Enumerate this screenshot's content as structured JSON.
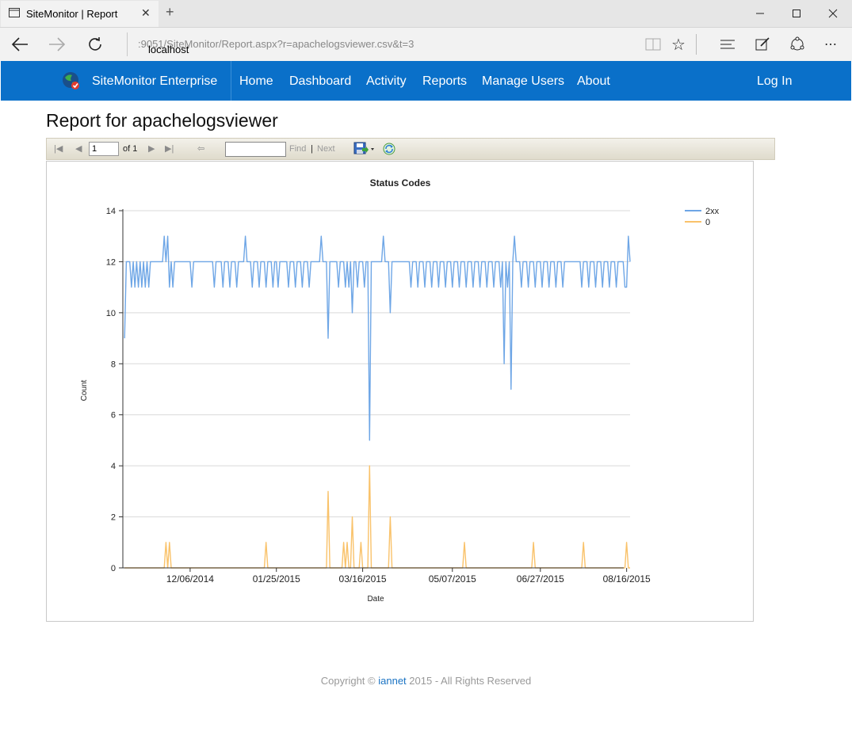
{
  "browser": {
    "tab_title": "SiteMonitor | Report",
    "url_host": "localhost",
    "url_rest": ":9051/SiteMonitor/Report.aspx?r=apachelogsviewer.csv&t=3"
  },
  "navbar": {
    "brand": "SiteMonitor Enterprise",
    "links": [
      "Home",
      "Dashboard",
      "Activity",
      "Reports",
      "Manage Users",
      "About"
    ],
    "login": "Log In"
  },
  "page": {
    "title": "Report for apachelogsviewer"
  },
  "report_toolbar": {
    "page_value": "1",
    "of_label": "of 1",
    "find_label": "Find",
    "separator": "|",
    "next_label": "Next"
  },
  "chart_data": {
    "type": "line",
    "title": "Status Codes",
    "xlabel": "Date",
    "ylabel": "Count",
    "ylim": [
      0,
      14
    ],
    "yticks": [
      0,
      2,
      4,
      6,
      8,
      10,
      12,
      14
    ],
    "xticks": [
      "12/06/2014",
      "01/25/2015",
      "03/16/2015",
      "05/07/2015",
      "06/27/2015",
      "08/16/2015"
    ],
    "xlim": [
      "2014-10-28",
      "2015-08-18"
    ],
    "grid": true,
    "legend_position": "right",
    "series": [
      {
        "name": "2xx",
        "color": "#6ea6e6",
        "points": [
          [
            "2014-10-29",
            9
          ],
          [
            "2014-10-30",
            12
          ],
          [
            "2014-11-01",
            12
          ],
          [
            "2014-11-02",
            11
          ],
          [
            "2014-11-03",
            12
          ],
          [
            "2014-11-04",
            11
          ],
          [
            "2014-11-05",
            12
          ],
          [
            "2014-11-06",
            11
          ],
          [
            "2014-11-07",
            12
          ],
          [
            "2014-11-08",
            11
          ],
          [
            "2014-11-09",
            12
          ],
          [
            "2014-11-10",
            11
          ],
          [
            "2014-11-11",
            12
          ],
          [
            "2014-11-12",
            11
          ],
          [
            "2014-11-13",
            12
          ],
          [
            "2014-11-20",
            12
          ],
          [
            "2014-11-21",
            13
          ],
          [
            "2014-11-22",
            12
          ],
          [
            "2014-11-23",
            13
          ],
          [
            "2014-11-24",
            11
          ],
          [
            "2014-11-25",
            12
          ],
          [
            "2014-11-26",
            11
          ],
          [
            "2014-11-27",
            12
          ],
          [
            "2014-12-06",
            12
          ],
          [
            "2014-12-07",
            11
          ],
          [
            "2014-12-08",
            12
          ],
          [
            "2014-12-19",
            12
          ],
          [
            "2014-12-20",
            11
          ],
          [
            "2014-12-21",
            12
          ],
          [
            "2014-12-24",
            12
          ],
          [
            "2014-12-25",
            11
          ],
          [
            "2014-12-26",
            12
          ],
          [
            "2014-12-28",
            12
          ],
          [
            "2014-12-29",
            11
          ],
          [
            "2014-12-30",
            12
          ],
          [
            "2015-01-01",
            12
          ],
          [
            "2015-01-02",
            11
          ],
          [
            "2015-01-03",
            12
          ],
          [
            "2015-01-06",
            12
          ],
          [
            "2015-01-07",
            13
          ],
          [
            "2015-01-08",
            12
          ],
          [
            "2015-01-10",
            12
          ],
          [
            "2015-01-11",
            11
          ],
          [
            "2015-01-12",
            12
          ],
          [
            "2015-01-14",
            12
          ],
          [
            "2015-01-15",
            11
          ],
          [
            "2015-01-16",
            12
          ],
          [
            "2015-01-18",
            12
          ],
          [
            "2015-01-19",
            11
          ],
          [
            "2015-01-20",
            12
          ],
          [
            "2015-01-22",
            12
          ],
          [
            "2015-01-23",
            11
          ],
          [
            "2015-01-24",
            12
          ],
          [
            "2015-01-25",
            12
          ],
          [
            "2015-01-26",
            11
          ],
          [
            "2015-01-27",
            12
          ],
          [
            "2015-01-31",
            12
          ],
          [
            "2015-02-01",
            11
          ],
          [
            "2015-02-02",
            12
          ],
          [
            "2015-02-04",
            12
          ],
          [
            "2015-02-05",
            11
          ],
          [
            "2015-02-06",
            12
          ],
          [
            "2015-02-08",
            12
          ],
          [
            "2015-02-09",
            11
          ],
          [
            "2015-02-10",
            12
          ],
          [
            "2015-02-12",
            12
          ],
          [
            "2015-02-13",
            11
          ],
          [
            "2015-02-14",
            12
          ],
          [
            "2015-02-19",
            12
          ],
          [
            "2015-02-20",
            13
          ],
          [
            "2015-02-21",
            12
          ],
          [
            "2015-02-23",
            12
          ],
          [
            "2015-02-24",
            9
          ],
          [
            "2015-02-25",
            12
          ],
          [
            "2015-03-01",
            12
          ],
          [
            "2015-03-02",
            11
          ],
          [
            "2015-03-03",
            12
          ],
          [
            "2015-03-05",
            12
          ],
          [
            "2015-03-06",
            11
          ],
          [
            "2015-03-07",
            12
          ],
          [
            "2015-03-08",
            11
          ],
          [
            "2015-03-09",
            12
          ],
          [
            "2015-03-10",
            10
          ],
          [
            "2015-03-11",
            12
          ],
          [
            "2015-03-12",
            12
          ],
          [
            "2015-03-13",
            11
          ],
          [
            "2015-03-14",
            12
          ],
          [
            "2015-03-16",
            12
          ],
          [
            "2015-03-17",
            11
          ],
          [
            "2015-03-18",
            12
          ],
          [
            "2015-03-19",
            12
          ],
          [
            "2015-03-20",
            5
          ],
          [
            "2015-03-21",
            12
          ],
          [
            "2015-03-27",
            12
          ],
          [
            "2015-03-28",
            13
          ],
          [
            "2015-03-29",
            12
          ],
          [
            "2015-03-31",
            12
          ],
          [
            "2015-04-01",
            10
          ],
          [
            "2015-04-02",
            12
          ],
          [
            "2015-04-12",
            12
          ],
          [
            "2015-04-13",
            11
          ],
          [
            "2015-04-14",
            12
          ],
          [
            "2015-04-16",
            12
          ],
          [
            "2015-04-17",
            11
          ],
          [
            "2015-04-18",
            12
          ],
          [
            "2015-04-20",
            12
          ],
          [
            "2015-04-21",
            11
          ],
          [
            "2015-04-22",
            12
          ],
          [
            "2015-04-24",
            12
          ],
          [
            "2015-04-25",
            11
          ],
          [
            "2015-04-26",
            12
          ],
          [
            "2015-04-28",
            12
          ],
          [
            "2015-04-29",
            11
          ],
          [
            "2015-04-30",
            12
          ],
          [
            "2015-05-02",
            12
          ],
          [
            "2015-05-03",
            11
          ],
          [
            "2015-05-04",
            12
          ],
          [
            "2015-05-06",
            12
          ],
          [
            "2015-05-07",
            11
          ],
          [
            "2015-05-08",
            12
          ],
          [
            "2015-05-10",
            12
          ],
          [
            "2015-05-11",
            11
          ],
          [
            "2015-05-12",
            12
          ],
          [
            "2015-05-14",
            12
          ],
          [
            "2015-05-15",
            11
          ],
          [
            "2015-05-16",
            12
          ],
          [
            "2015-05-18",
            12
          ],
          [
            "2015-05-19",
            11
          ],
          [
            "2015-05-20",
            12
          ],
          [
            "2015-05-22",
            12
          ],
          [
            "2015-05-23",
            11
          ],
          [
            "2015-05-24",
            12
          ],
          [
            "2015-05-26",
            12
          ],
          [
            "2015-05-27",
            11
          ],
          [
            "2015-05-28",
            12
          ],
          [
            "2015-05-30",
            12
          ],
          [
            "2015-05-31",
            11
          ],
          [
            "2015-06-01",
            12
          ],
          [
            "2015-06-03",
            12
          ],
          [
            "2015-06-04",
            11
          ],
          [
            "2015-06-05",
            12
          ],
          [
            "2015-06-06",
            8
          ],
          [
            "2015-06-07",
            12
          ],
          [
            "2015-06-08",
            11
          ],
          [
            "2015-06-09",
            12
          ],
          [
            "2015-06-10",
            7
          ],
          [
            "2015-06-11",
            12
          ],
          [
            "2015-06-12",
            13
          ],
          [
            "2015-06-13",
            12
          ],
          [
            "2015-06-15",
            12
          ],
          [
            "2015-06-16",
            11
          ],
          [
            "2015-06-17",
            12
          ],
          [
            "2015-06-19",
            12
          ],
          [
            "2015-06-20",
            11
          ],
          [
            "2015-06-21",
            12
          ],
          [
            "2015-06-23",
            12
          ],
          [
            "2015-06-24",
            11
          ],
          [
            "2015-06-25",
            12
          ],
          [
            "2015-06-27",
            12
          ],
          [
            "2015-06-28",
            11
          ],
          [
            "2015-06-29",
            12
          ],
          [
            "2015-07-01",
            12
          ],
          [
            "2015-07-02",
            11
          ],
          [
            "2015-07-03",
            12
          ],
          [
            "2015-07-05",
            12
          ],
          [
            "2015-07-06",
            11
          ],
          [
            "2015-07-07",
            12
          ],
          [
            "2015-07-09",
            12
          ],
          [
            "2015-07-10",
            11
          ],
          [
            "2015-07-11",
            12
          ],
          [
            "2015-07-20",
            12
          ],
          [
            "2015-07-21",
            11
          ],
          [
            "2015-07-22",
            12
          ],
          [
            "2015-07-24",
            12
          ],
          [
            "2015-07-25",
            11
          ],
          [
            "2015-07-26",
            12
          ],
          [
            "2015-07-28",
            12
          ],
          [
            "2015-07-29",
            11
          ],
          [
            "2015-07-30",
            12
          ],
          [
            "2015-08-01",
            12
          ],
          [
            "2015-08-02",
            11
          ],
          [
            "2015-08-03",
            12
          ],
          [
            "2015-08-05",
            12
          ],
          [
            "2015-08-06",
            11
          ],
          [
            "2015-08-07",
            12
          ],
          [
            "2015-08-09",
            12
          ],
          [
            "2015-08-10",
            11
          ],
          [
            "2015-08-11",
            12
          ],
          [
            "2015-08-14",
            12
          ],
          [
            "2015-08-15",
            11
          ],
          [
            "2015-08-16",
            11
          ],
          [
            "2015-08-17",
            13
          ],
          [
            "2015-08-18",
            12
          ]
        ]
      },
      {
        "name": "0",
        "color": "#f9c26a",
        "points": [
          [
            "2014-10-29",
            0
          ],
          [
            "2014-11-21",
            0
          ],
          [
            "2014-11-22",
            1
          ],
          [
            "2014-11-23",
            0
          ],
          [
            "2014-11-24",
            1
          ],
          [
            "2014-11-25",
            0
          ],
          [
            "2015-01-18",
            0
          ],
          [
            "2015-01-19",
            1
          ],
          [
            "2015-01-20",
            0
          ],
          [
            "2015-02-23",
            0
          ],
          [
            "2015-02-24",
            3
          ],
          [
            "2015-02-25",
            0
          ],
          [
            "2015-03-04",
            0
          ],
          [
            "2015-03-05",
            1
          ],
          [
            "2015-03-06",
            0
          ],
          [
            "2015-03-07",
            1
          ],
          [
            "2015-03-08",
            0
          ],
          [
            "2015-03-09",
            0
          ],
          [
            "2015-03-10",
            2
          ],
          [
            "2015-03-11",
            0
          ],
          [
            "2015-03-14",
            0
          ],
          [
            "2015-03-15",
            1
          ],
          [
            "2015-03-16",
            0
          ],
          [
            "2015-03-19",
            0
          ],
          [
            "2015-03-20",
            4
          ],
          [
            "2015-03-21",
            0
          ],
          [
            "2015-03-31",
            0
          ],
          [
            "2015-04-01",
            2
          ],
          [
            "2015-04-02",
            0
          ],
          [
            "2015-05-13",
            0
          ],
          [
            "2015-05-14",
            1
          ],
          [
            "2015-05-15",
            0
          ],
          [
            "2015-06-22",
            0
          ],
          [
            "2015-06-23",
            1
          ],
          [
            "2015-06-24",
            0
          ],
          [
            "2015-07-21",
            0
          ],
          [
            "2015-07-22",
            1
          ],
          [
            "2015-07-23",
            0
          ],
          [
            "2015-08-15",
            0
          ],
          [
            "2015-08-16",
            1
          ],
          [
            "2015-08-17",
            0
          ],
          [
            "2015-08-18",
            0
          ]
        ]
      }
    ]
  },
  "footer": {
    "prefix": "Copyright ©",
    "link": "iannet",
    "suffix": "2015 - All Rights Reserved"
  }
}
